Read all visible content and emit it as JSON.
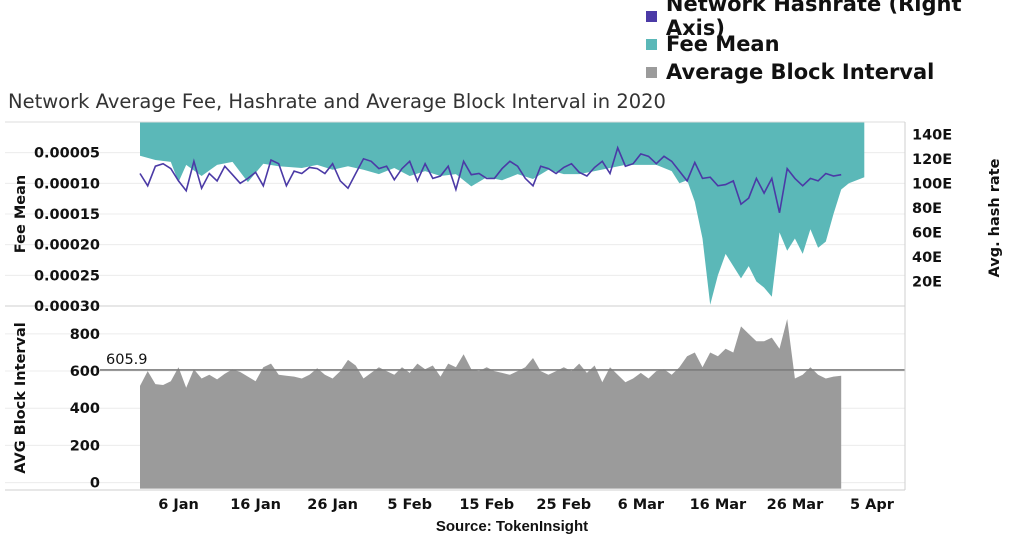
{
  "chart_data": {
    "type": "area",
    "title": "Network Average Fee, Hashrate and Average Block Interval in 2020",
    "source": "Source: TokenInsight",
    "x_ticks": [
      "6 Jan",
      "16 Jan",
      "26 Jan",
      "5 Feb",
      "15 Feb",
      "25 Feb",
      "6 Mar",
      "16 Mar",
      "26 Mar",
      "5 Apr"
    ],
    "x_range": [
      "2020-01-01",
      "2020-04-05"
    ],
    "legend": [
      {
        "name": "Network Hashrate (Right Axis)",
        "color": "#4b3aa6"
      },
      {
        "name": "Fee Mean",
        "color": "#5bb8b8"
      },
      {
        "name": "Average Block Interval",
        "color": "#9b9b9b"
      }
    ],
    "top_panel": {
      "left_axis": {
        "label": "Fee Mean",
        "reversed": true,
        "range": [
          0,
          0.0003
        ],
        "ticks": [
          "0.00005",
          "0.00010",
          "0.00015",
          "0.00020",
          "0.00025",
          "0.00030"
        ]
      },
      "right_axis": {
        "label": "Avg. hash rate",
        "range": [
          0,
          150
        ],
        "ticks": [
          "20E",
          "40E",
          "60E",
          "80E",
          "100E",
          "120E",
          "140E"
        ]
      },
      "fee_mean": [
        [
          "2020-01-01",
          5.5e-05
        ],
        [
          "2020-01-03",
          6.2e-05
        ],
        [
          "2020-01-05",
          6.5e-05
        ],
        [
          "2020-01-06",
          9.8e-05
        ],
        [
          "2020-01-07",
          7e-05
        ],
        [
          "2020-01-09",
          8.8e-05
        ],
        [
          "2020-01-11",
          7e-05
        ],
        [
          "2020-01-13",
          6.5e-05
        ],
        [
          "2020-01-15",
          9.8e-05
        ],
        [
          "2020-01-17",
          6.8e-05
        ],
        [
          "2020-01-19",
          7.2e-05
        ],
        [
          "2020-01-22",
          7.5e-05
        ],
        [
          "2020-01-24",
          7e-05
        ],
        [
          "2020-01-26",
          7.8e-05
        ],
        [
          "2020-01-28",
          7.2e-05
        ],
        [
          "2020-01-30",
          7.8e-05
        ],
        [
          "2020-02-01",
          8.5e-05
        ],
        [
          "2020-02-03",
          7.5e-05
        ],
        [
          "2020-02-05",
          8.8e-05
        ],
        [
          "2020-02-07",
          8e-05
        ],
        [
          "2020-02-09",
          8.8e-05
        ],
        [
          "2020-02-11",
          8.5e-05
        ],
        [
          "2020-02-13",
          0.000105
        ],
        [
          "2020-02-15",
          9e-05
        ],
        [
          "2020-02-17",
          9.5e-05
        ],
        [
          "2020-02-19",
          8.5e-05
        ],
        [
          "2020-02-21",
          9.3e-05
        ],
        [
          "2020-02-23",
          7.8e-05
        ],
        [
          "2020-02-25",
          8.5e-05
        ],
        [
          "2020-02-27",
          8.5e-05
        ],
        [
          "2020-02-29",
          8e-05
        ],
        [
          "2020-03-02",
          7.5e-05
        ],
        [
          "2020-03-04",
          7e-05
        ],
        [
          "2020-03-06",
          7e-05
        ],
        [
          "2020-03-08",
          7e-05
        ],
        [
          "2020-03-10",
          8e-05
        ],
        [
          "2020-03-11",
          0.0001
        ],
        [
          "2020-03-12",
          9.5e-05
        ],
        [
          "2020-03-13",
          0.00013
        ],
        [
          "2020-03-14",
          0.00019
        ],
        [
          "2020-03-15",
          0.000298
        ],
        [
          "2020-03-16",
          0.00025
        ],
        [
          "2020-03-17",
          0.000215
        ],
        [
          "2020-03-18",
          0.000235
        ],
        [
          "2020-03-19",
          0.000255
        ],
        [
          "2020-03-20",
          0.000235
        ],
        [
          "2020-03-21",
          0.00026
        ],
        [
          "2020-03-22",
          0.00027
        ],
        [
          "2020-03-23",
          0.000285
        ],
        [
          "2020-03-24",
          0.00018
        ],
        [
          "2020-03-25",
          0.00021
        ],
        [
          "2020-03-26",
          0.00019
        ],
        [
          "2020-03-27",
          0.000215
        ],
        [
          "2020-03-28",
          0.000175
        ],
        [
          "2020-03-29",
          0.000205
        ],
        [
          "2020-03-30",
          0.000195
        ],
        [
          "2020-03-31",
          0.00015
        ],
        [
          "2020-04-01",
          0.00011
        ],
        [
          "2020-04-02",
          0.0001
        ],
        [
          "2020-04-03",
          9.5e-05
        ],
        [
          "2020-04-04",
          9e-05
        ]
      ],
      "hashrate": [
        [
          "2020-01-01",
          108
        ],
        [
          "2020-01-02",
          98
        ],
        [
          "2020-01-03",
          114
        ],
        [
          "2020-01-04",
          116
        ],
        [
          "2020-01-05",
          112
        ],
        [
          "2020-01-06",
          102
        ],
        [
          "2020-01-07",
          94
        ],
        [
          "2020-01-08",
          118
        ],
        [
          "2020-01-09",
          96
        ],
        [
          "2020-01-10",
          108
        ],
        [
          "2020-01-11",
          102
        ],
        [
          "2020-01-12",
          114
        ],
        [
          "2020-01-13",
          107
        ],
        [
          "2020-01-14",
          100
        ],
        [
          "2020-01-15",
          104
        ],
        [
          "2020-01-16",
          109
        ],
        [
          "2020-01-17",
          98
        ],
        [
          "2020-01-18",
          119
        ],
        [
          "2020-01-19",
          116
        ],
        [
          "2020-01-20",
          98
        ],
        [
          "2020-01-21",
          110
        ],
        [
          "2020-01-22",
          108
        ],
        [
          "2020-01-23",
          113
        ],
        [
          "2020-01-24",
          112
        ],
        [
          "2020-01-25",
          108
        ],
        [
          "2020-01-26",
          116
        ],
        [
          "2020-01-27",
          102
        ],
        [
          "2020-01-28",
          96
        ],
        [
          "2020-01-29",
          108
        ],
        [
          "2020-01-30",
          120
        ],
        [
          "2020-01-31",
          118
        ],
        [
          "2020-02-01",
          112
        ],
        [
          "2020-02-02",
          114
        ],
        [
          "2020-02-03",
          103
        ],
        [
          "2020-02-04",
          112
        ],
        [
          "2020-02-05",
          118
        ],
        [
          "2020-02-06",
          102
        ],
        [
          "2020-02-07",
          116
        ],
        [
          "2020-02-08",
          104
        ],
        [
          "2020-02-09",
          106
        ],
        [
          "2020-02-10",
          114
        ],
        [
          "2020-02-11",
          95
        ],
        [
          "2020-02-12",
          118
        ],
        [
          "2020-02-13",
          107
        ],
        [
          "2020-02-14",
          108
        ],
        [
          "2020-02-15",
          104
        ],
        [
          "2020-02-16",
          104
        ],
        [
          "2020-02-17",
          112
        ],
        [
          "2020-02-18",
          118
        ],
        [
          "2020-02-19",
          114
        ],
        [
          "2020-02-20",
          104
        ],
        [
          "2020-02-21",
          98
        ],
        [
          "2020-02-22",
          114
        ],
        [
          "2020-02-23",
          112
        ],
        [
          "2020-02-24",
          108
        ],
        [
          "2020-02-25",
          113
        ],
        [
          "2020-02-26",
          116
        ],
        [
          "2020-02-27",
          109
        ],
        [
          "2020-02-28",
          106
        ],
        [
          "2020-02-29",
          113
        ],
        [
          "2020-03-01",
          118
        ],
        [
          "2020-03-02",
          108
        ],
        [
          "2020-03-03",
          129
        ],
        [
          "2020-03-04",
          114
        ],
        [
          "2020-03-05",
          116
        ],
        [
          "2020-03-06",
          124
        ],
        [
          "2020-03-07",
          122
        ],
        [
          "2020-03-08",
          116
        ],
        [
          "2020-03-09",
          122
        ],
        [
          "2020-03-10",
          118
        ],
        [
          "2020-03-11",
          110
        ],
        [
          "2020-03-12",
          102
        ],
        [
          "2020-03-13",
          117
        ],
        [
          "2020-03-14",
          104
        ],
        [
          "2020-03-15",
          105
        ],
        [
          "2020-03-16",
          98
        ],
        [
          "2020-03-17",
          99
        ],
        [
          "2020-03-18",
          102
        ],
        [
          "2020-03-19",
          83
        ],
        [
          "2020-03-20",
          88
        ],
        [
          "2020-03-21",
          104
        ],
        [
          "2020-03-22",
          92
        ],
        [
          "2020-03-23",
          104
        ],
        [
          "2020-03-24",
          76
        ],
        [
          "2020-03-25",
          112
        ],
        [
          "2020-03-26",
          104
        ],
        [
          "2020-03-27",
          98
        ],
        [
          "2020-03-28",
          104
        ],
        [
          "2020-03-29",
          102
        ],
        [
          "2020-03-30",
          108
        ],
        [
          "2020-03-31",
          106
        ],
        [
          "2020-04-01",
          107
        ]
      ]
    },
    "bottom_panel": {
      "left_axis": {
        "label": "AVG Block Interval",
        "range": [
          -40,
          950
        ],
        "ticks": [
          "0",
          "200",
          "400",
          "600",
          "800"
        ]
      },
      "reference_line": {
        "value": 605.9,
        "label": "605.9"
      },
      "block_interval": [
        [
          "2020-01-01",
          520
        ],
        [
          "2020-01-02",
          600
        ],
        [
          "2020-01-03",
          530
        ],
        [
          "2020-01-04",
          525
        ],
        [
          "2020-01-05",
          545
        ],
        [
          "2020-01-06",
          620
        ],
        [
          "2020-01-07",
          510
        ],
        [
          "2020-01-08",
          610
        ],
        [
          "2020-01-09",
          560
        ],
        [
          "2020-01-10",
          580
        ],
        [
          "2020-01-11",
          555
        ],
        [
          "2020-01-12",
          585
        ],
        [
          "2020-01-13",
          610
        ],
        [
          "2020-01-14",
          595
        ],
        [
          "2020-01-15",
          570
        ],
        [
          "2020-01-16",
          545
        ],
        [
          "2020-01-17",
          620
        ],
        [
          "2020-01-18",
          640
        ],
        [
          "2020-01-19",
          580
        ],
        [
          "2020-01-20",
          575
        ],
        [
          "2020-01-21",
          570
        ],
        [
          "2020-01-22",
          560
        ],
        [
          "2020-01-23",
          580
        ],
        [
          "2020-01-24",
          615
        ],
        [
          "2020-01-25",
          580
        ],
        [
          "2020-01-26",
          560
        ],
        [
          "2020-01-27",
          600
        ],
        [
          "2020-01-28",
          660
        ],
        [
          "2020-01-29",
          630
        ],
        [
          "2020-01-30",
          560
        ],
        [
          "2020-01-31",
          590
        ],
        [
          "2020-02-01",
          620
        ],
        [
          "2020-02-02",
          600
        ],
        [
          "2020-02-03",
          580
        ],
        [
          "2020-02-04",
          620
        ],
        [
          "2020-02-05",
          590
        ],
        [
          "2020-02-06",
          640
        ],
        [
          "2020-02-07",
          610
        ],
        [
          "2020-02-08",
          630
        ],
        [
          "2020-02-09",
          570
        ],
        [
          "2020-02-10",
          640
        ],
        [
          "2020-02-11",
          620
        ],
        [
          "2020-02-12",
          690
        ],
        [
          "2020-02-13",
          610
        ],
        [
          "2020-02-14",
          600
        ],
        [
          "2020-02-15",
          620
        ],
        [
          "2020-02-16",
          600
        ],
        [
          "2020-02-17",
          590
        ],
        [
          "2020-02-18",
          580
        ],
        [
          "2020-02-19",
          600
        ],
        [
          "2020-02-20",
          620
        ],
        [
          "2020-02-21",
          670
        ],
        [
          "2020-02-22",
          600
        ],
        [
          "2020-02-23",
          580
        ],
        [
          "2020-02-24",
          600
        ],
        [
          "2020-02-25",
          620
        ],
        [
          "2020-02-26",
          600
        ],
        [
          "2020-02-27",
          640
        ],
        [
          "2020-02-28",
          590
        ],
        [
          "2020-02-29",
          630
        ],
        [
          "2020-03-01",
          540
        ],
        [
          "2020-03-02",
          620
        ],
        [
          "2020-03-03",
          580
        ],
        [
          "2020-03-04",
          540
        ],
        [
          "2020-03-05",
          560
        ],
        [
          "2020-03-06",
          590
        ],
        [
          "2020-03-07",
          560
        ],
        [
          "2020-03-08",
          600
        ],
        [
          "2020-03-09",
          610
        ],
        [
          "2020-03-10",
          580
        ],
        [
          "2020-03-11",
          620
        ],
        [
          "2020-03-12",
          680
        ],
        [
          "2020-03-13",
          700
        ],
        [
          "2020-03-14",
          620
        ],
        [
          "2020-03-15",
          700
        ],
        [
          "2020-03-16",
          680
        ],
        [
          "2020-03-17",
          720
        ],
        [
          "2020-03-18",
          700
        ],
        [
          "2020-03-19",
          840
        ],
        [
          "2020-03-20",
          800
        ],
        [
          "2020-03-21",
          760
        ],
        [
          "2020-03-22",
          760
        ],
        [
          "2020-03-23",
          780
        ],
        [
          "2020-03-24",
          720
        ],
        [
          "2020-03-25",
          880
        ],
        [
          "2020-03-26",
          560
        ],
        [
          "2020-03-27",
          580
        ],
        [
          "2020-03-28",
          620
        ],
        [
          "2020-03-29",
          580
        ],
        [
          "2020-03-30",
          560
        ],
        [
          "2020-03-31",
          570
        ],
        [
          "2020-04-01",
          575
        ]
      ]
    }
  }
}
